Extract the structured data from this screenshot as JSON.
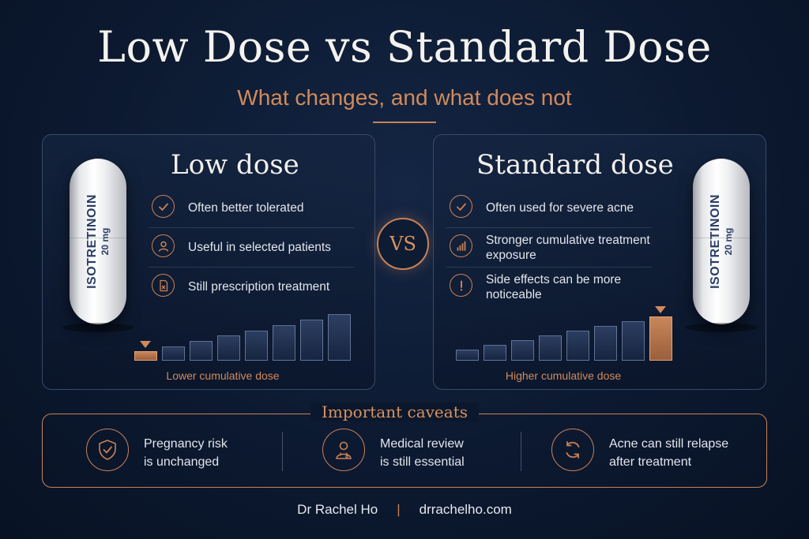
{
  "title": "Low Dose vs Standard Dose",
  "subtitle": "What changes, and what does not",
  "capsule": {
    "name": "ISOTRETINOIN",
    "dose": "20 mg"
  },
  "vs_label": "VS",
  "low_dose": {
    "heading": "Low dose",
    "features": [
      {
        "icon": "check-icon",
        "text": "Often better tolerated"
      },
      {
        "icon": "person-icon",
        "text": "Useful in selected patients"
      },
      {
        "icon": "prescription-icon",
        "text": "Still prescription treatment"
      }
    ],
    "bar_caption": "Lower cumulative dose"
  },
  "standard_dose": {
    "heading": "Standard dose",
    "features": [
      {
        "icon": "check-icon",
        "text": "Often used for severe acne"
      },
      {
        "icon": "bar-chart-icon",
        "text": "Stronger cumulative treatment exposure"
      },
      {
        "icon": "exclamation-icon",
        "text": "Side effects can be more noticeable"
      }
    ],
    "bar_caption": "Higher cumulative dose"
  },
  "caveats": {
    "title": "Important caveats",
    "items": [
      {
        "icon": "shield-check-icon",
        "line1": "Pregnancy risk",
        "line2": "is unchanged"
      },
      {
        "icon": "doctor-icon",
        "line1": "Medical review",
        "line2": "is still essential"
      },
      {
        "icon": "refresh-icon",
        "line1": "Acne can still relapse",
        "line2": "after treatment"
      }
    ]
  },
  "footer": {
    "author": "Dr Rachel Ho",
    "separator": "|",
    "website": "drrachelho.com"
  },
  "colors": {
    "accent": "#c98156",
    "background": "#0c1930",
    "text": "#e6e9ef"
  }
}
